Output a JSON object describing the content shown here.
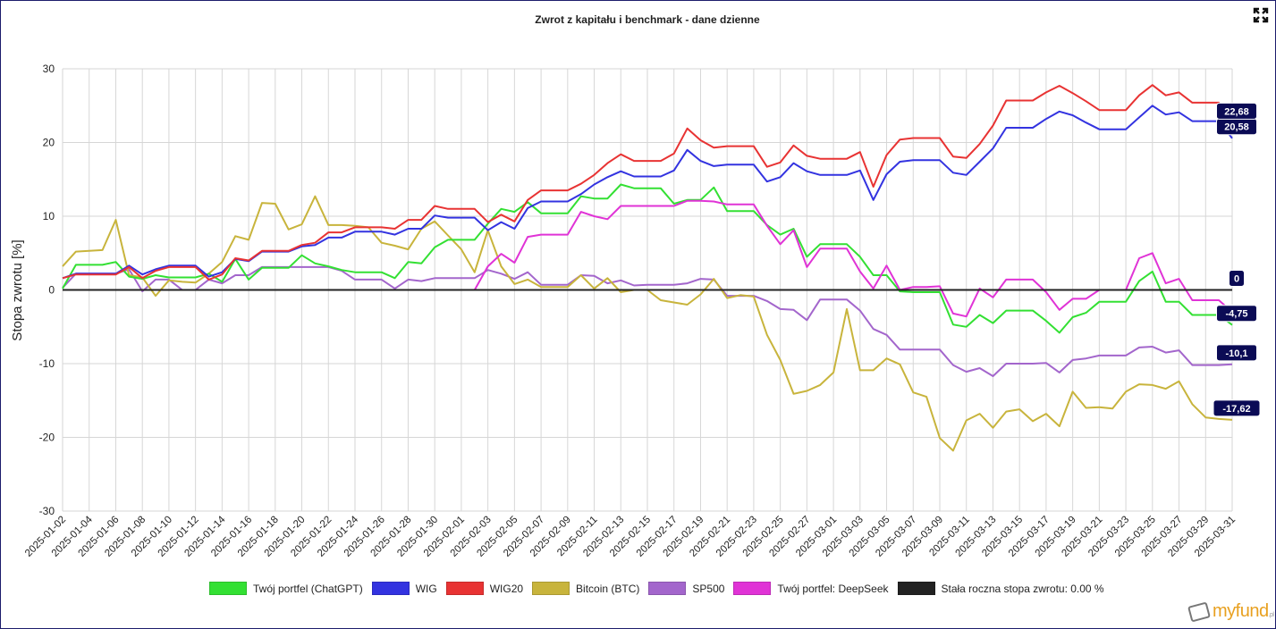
{
  "chart_data": {
    "type": "line",
    "title": "Zwrot z kapitału i benchmark - dane dzienne",
    "xlabel": "",
    "ylabel": "Stopa zwrotu [%]",
    "ylim": [
      -30,
      30
    ],
    "yticks": [
      "30",
      "20",
      "10",
      "0",
      "-10",
      "-20",
      "-30"
    ],
    "ytick_values": [
      30,
      20,
      10,
      0,
      -10,
      -20,
      -30
    ],
    "x_start": "2025-01-02",
    "x_end": "2025-03-31",
    "n_points": 89,
    "x_tick_step_days": 2,
    "xticks": [
      "2025-01-02",
      "2025-01-04",
      "2025-01-06",
      "2025-01-08",
      "2025-01-10",
      "2025-01-12",
      "2025-01-14",
      "2025-01-16",
      "2025-01-18",
      "2025-01-20",
      "2025-01-22",
      "2025-01-24",
      "2025-01-26",
      "2025-01-28",
      "2025-01-30",
      "2025-02-01",
      "2025-02-03",
      "2025-02-05",
      "2025-02-07",
      "2025-02-09",
      "2025-02-11",
      "2025-02-13",
      "2025-02-15",
      "2025-02-17",
      "2025-02-19",
      "2025-02-21",
      "2025-02-23",
      "2025-02-25",
      "2025-02-27",
      "2025-03-01",
      "2025-03-03",
      "2025-03-05",
      "2025-03-07",
      "2025-03-09",
      "2025-03-11",
      "2025-03-13",
      "2025-03-15",
      "2025-03-17",
      "2025-03-19",
      "2025-03-21",
      "2025-03-23",
      "2025-03-25",
      "2025-03-27",
      "2025-03-29",
      "2025-03-31"
    ],
    "grid": true,
    "legend_position": "bottom",
    "series": [
      {
        "name": "Twój portfel (ChatGPT)",
        "color": "#33e033",
        "end_label": "-4,75",
        "values": [
          0.2,
          3.4,
          3.4,
          3.4,
          3.8,
          1.8,
          1.5,
          2.0,
          1.7,
          1.7,
          1.7,
          2.2,
          1.1,
          4.2,
          1.4,
          3.0,
          3.0,
          3.0,
          4.7,
          3.6,
          3.2,
          2.7,
          2.4,
          2.4,
          2.4,
          1.6,
          3.8,
          3.6,
          5.8,
          6.8,
          6.8,
          6.8,
          9.0,
          11.0,
          10.6,
          11.9,
          10.4,
          10.4,
          10.4,
          12.7,
          12.4,
          12.4,
          14.3,
          13.8,
          13.8,
          13.8,
          11.7,
          12.2,
          12.2,
          13.9,
          10.7,
          10.7,
          10.7,
          8.8,
          7.5,
          8.3,
          4.5,
          6.2,
          6.2,
          6.2,
          4.5,
          2.0,
          2.0,
          -0.2,
          -0.3,
          -0.3,
          -0.3,
          -4.7,
          -5.0,
          -3.4,
          -4.5,
          -2.8,
          -2.8,
          -2.8,
          -4.2,
          -5.8,
          -3.7,
          -3.1,
          -1.6,
          -1.6,
          -1.6,
          1.2,
          2.5,
          -1.6,
          -1.6,
          -3.4,
          -3.4,
          -3.4,
          -4.75
        ]
      },
      {
        "name": "WIG",
        "color": "#3333e0",
        "end_label": "20,58",
        "values": [
          1.6,
          2.2,
          2.2,
          2.2,
          2.2,
          3.3,
          2.1,
          2.8,
          3.3,
          3.3,
          3.3,
          1.8,
          2.4,
          4.2,
          3.9,
          5.2,
          5.2,
          5.2,
          5.9,
          6.1,
          7.1,
          7.1,
          7.9,
          7.9,
          7.9,
          7.5,
          8.3,
          8.3,
          10.1,
          9.8,
          9.8,
          9.8,
          8.1,
          9.2,
          8.3,
          11.1,
          12.0,
          12.0,
          12.0,
          13.0,
          14.3,
          15.3,
          16.1,
          15.4,
          15.4,
          15.4,
          16.2,
          19.0,
          17.5,
          16.8,
          17.0,
          17.0,
          17.0,
          14.7,
          15.3,
          17.2,
          16.1,
          15.6,
          15.6,
          15.6,
          16.2,
          12.2,
          15.7,
          17.4,
          17.6,
          17.6,
          17.6,
          15.9,
          15.6,
          17.4,
          19.2,
          22.0,
          22.0,
          22.0,
          23.2,
          24.2,
          23.7,
          22.7,
          21.8,
          21.8,
          21.8,
          23.4,
          25.0,
          23.8,
          24.1,
          22.9,
          22.9,
          22.9,
          20.58
        ]
      },
      {
        "name": "WIG20",
        "color": "#e83333",
        "end_label": "22,68",
        "values": [
          1.6,
          2.1,
          2.1,
          2.1,
          2.1,
          3.1,
          1.6,
          2.6,
          3.1,
          3.1,
          3.1,
          1.4,
          2.1,
          4.3,
          4.0,
          5.3,
          5.3,
          5.3,
          6.1,
          6.4,
          7.8,
          7.8,
          8.5,
          8.5,
          8.5,
          8.3,
          9.5,
          9.5,
          11.4,
          11.0,
          11.0,
          11.0,
          9.2,
          10.2,
          9.3,
          12.2,
          13.5,
          13.5,
          13.5,
          14.4,
          15.6,
          17.2,
          18.4,
          17.5,
          17.5,
          17.5,
          18.5,
          21.9,
          20.3,
          19.3,
          19.5,
          19.5,
          19.5,
          16.7,
          17.3,
          19.6,
          18.2,
          17.8,
          17.8,
          17.8,
          18.7,
          14.0,
          18.3,
          20.4,
          20.6,
          20.6,
          20.6,
          18.1,
          17.9,
          19.8,
          22.3,
          25.7,
          25.7,
          25.7,
          26.8,
          27.7,
          26.7,
          25.6,
          24.4,
          24.4,
          24.4,
          26.4,
          27.8,
          26.4,
          26.8,
          25.4,
          25.4,
          25.4,
          22.68
        ]
      },
      {
        "name": "Bitcoin (BTC)",
        "color": "#c8b43c",
        "end_label": "-17,62",
        "values": [
          3.2,
          5.2,
          5.3,
          5.4,
          9.5,
          2.0,
          1.7,
          -0.8,
          1.3,
          1.1,
          1.0,
          2.2,
          3.8,
          7.3,
          6.8,
          11.8,
          11.7,
          8.2,
          8.9,
          12.7,
          8.8,
          8.8,
          8.7,
          8.5,
          6.4,
          6.0,
          5.5,
          8.3,
          9.3,
          7.4,
          5.5,
          2.4,
          8.1,
          3.2,
          0.8,
          1.4,
          0.4,
          0.4,
          0.4,
          2.0,
          0.2,
          1.6,
          -0.3,
          0.0,
          0.0,
          -1.4,
          -1.7,
          -2.0,
          -0.6,
          1.5,
          -1.1,
          -0.7,
          -0.9,
          -6.1,
          -9.5,
          -14.1,
          -13.7,
          -12.9,
          -11.2,
          -2.6,
          -10.9,
          -10.9,
          -9.3,
          -10.1,
          -13.9,
          -14.5,
          -20.1,
          -21.8,
          -17.7,
          -16.8,
          -18.7,
          -16.5,
          -16.2,
          -17.8,
          -16.8,
          -18.5,
          -13.8,
          -16.0,
          -15.9,
          -16.1,
          -13.8,
          -12.8,
          -12.9,
          -13.4,
          -12.4,
          -15.5,
          -17.3,
          -17.5,
          -17.62
        ]
      },
      {
        "name": "SP500",
        "color": "#a366cc",
        "end_label": "-10,1",
        "values": [
          0.3,
          2.2,
          2.2,
          2.2,
          2.2,
          2.8,
          -0.2,
          1.4,
          1.4,
          0.0,
          0.0,
          1.4,
          0.9,
          2.0,
          2.0,
          3.1,
          3.1,
          3.1,
          3.1,
          3.1,
          3.1,
          2.6,
          1.4,
          1.4,
          1.4,
          0.2,
          1.4,
          1.2,
          1.6,
          1.6,
          1.6,
          1.6,
          2.7,
          2.2,
          1.5,
          2.4,
          0.7,
          0.7,
          0.7,
          2.0,
          1.9,
          0.9,
          1.3,
          0.6,
          0.7,
          0.7,
          0.7,
          0.9,
          1.5,
          1.4,
          -0.8,
          -0.8,
          -0.8,
          -1.5,
          -2.6,
          -2.7,
          -4.1,
          -1.3,
          -1.3,
          -1.3,
          -2.8,
          -5.3,
          -6.1,
          -8.1,
          -8.1,
          -8.1,
          -8.1,
          -10.2,
          -11.1,
          -10.6,
          -11.7,
          -10.0,
          -10.0,
          -10.0,
          -9.9,
          -11.2,
          -9.5,
          -9.3,
          -8.9,
          -8.9,
          -8.9,
          -7.8,
          -7.7,
          -8.5,
          -8.2,
          -10.2,
          -10.2,
          -10.2,
          -10.1
        ]
      },
      {
        "name": "Twój portfel: DeepSeek",
        "color": "#e033d6",
        "end_label": "",
        "values": [
          0,
          0,
          0,
          0,
          0,
          0,
          0,
          0,
          0,
          0,
          0,
          0,
          0,
          0,
          0,
          0,
          0,
          0,
          0,
          0,
          0,
          0,
          0,
          0,
          0,
          0,
          0,
          0,
          0,
          0,
          0,
          0,
          3.2,
          4.9,
          3.7,
          7.2,
          7.5,
          7.5,
          7.5,
          10.6,
          10.0,
          9.6,
          11.4,
          11.4,
          11.4,
          11.4,
          11.4,
          12.1,
          12.1,
          12.0,
          11.6,
          11.6,
          11.6,
          8.7,
          6.2,
          8.1,
          3.1,
          5.6,
          5.6,
          5.6,
          2.5,
          0.2,
          3.3,
          0.0,
          0.4,
          0.4,
          0.5,
          -3.2,
          -3.6,
          0.2,
          -1.0,
          1.4,
          1.4,
          1.4,
          -0.3,
          -2.7,
          -1.2,
          -1.2,
          0.0,
          0.0,
          0.0,
          4.3,
          5.0,
          0.9,
          1.5,
          -1.4,
          -1.4,
          -1.4,
          -3.0
        ]
      },
      {
        "name": "Stała roczna stopa zwrotu: 0.00 %",
        "color": "#222222",
        "end_label": "0",
        "values": [
          0,
          0,
          0,
          0,
          0,
          0,
          0,
          0,
          0,
          0,
          0,
          0,
          0,
          0,
          0,
          0,
          0,
          0,
          0,
          0,
          0,
          0,
          0,
          0,
          0,
          0,
          0,
          0,
          0,
          0,
          0,
          0,
          0,
          0,
          0,
          0,
          0,
          0,
          0,
          0,
          0,
          0,
          0,
          0,
          0,
          0,
          0,
          0,
          0,
          0,
          0,
          0,
          0,
          0,
          0,
          0,
          0,
          0,
          0,
          0,
          0,
          0,
          0,
          0,
          0,
          0,
          0,
          0,
          0,
          0,
          0,
          0,
          0,
          0,
          0,
          0,
          0,
          0,
          0,
          0,
          0,
          0,
          0,
          0,
          0,
          0,
          0,
          0,
          0
        ]
      }
    ]
  },
  "ui": {
    "expand_icon": "expand-icon",
    "logo_text": "myfund",
    "logo_suffix": ".pl",
    "end_label_bg": "#0b0b55"
  }
}
